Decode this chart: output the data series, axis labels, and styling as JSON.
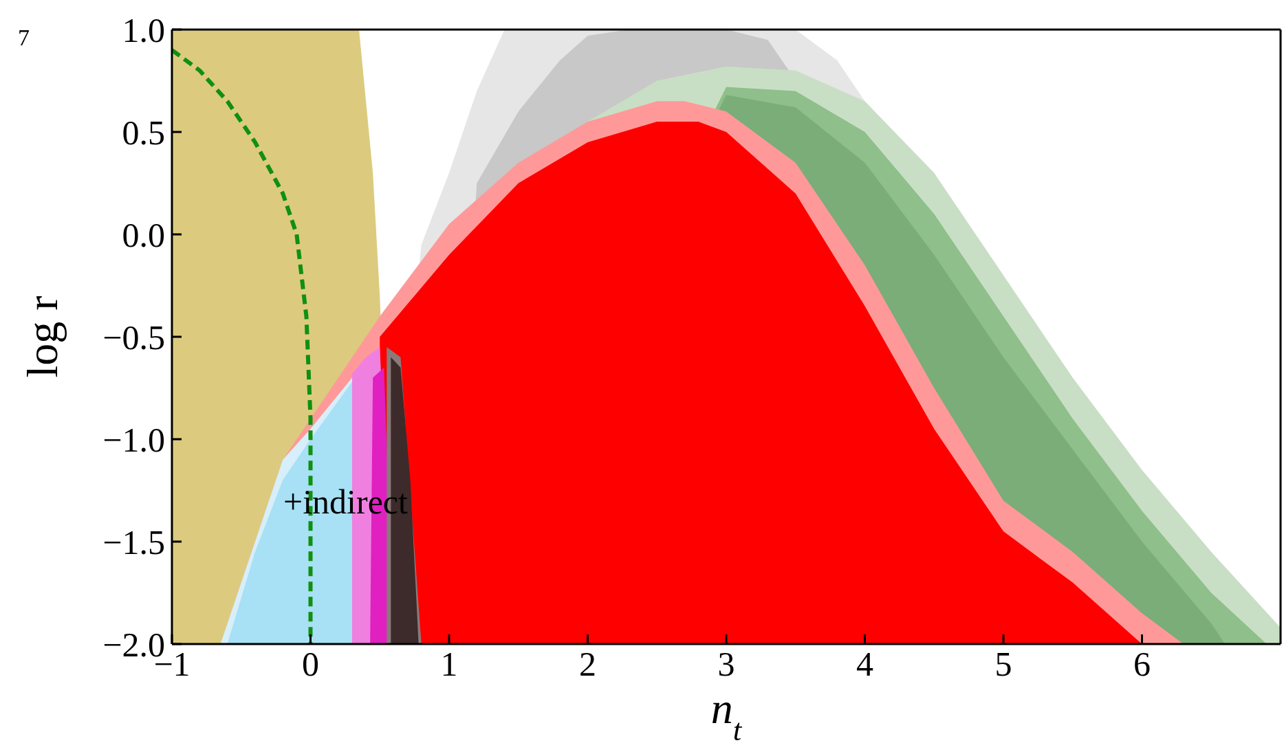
{
  "chart_data": {
    "type": "area",
    "xlabel": "n$_{t}$",
    "ylabel": "log r",
    "xlim": [
      -1,
      7
    ],
    "ylim": [
      -2,
      1
    ],
    "xticks": [
      {
        "value": -1,
        "label": "−1"
      },
      0,
      1,
      2,
      3,
      4,
      5,
      6
    ],
    "yticks": [
      {
        "value": -2,
        "label": "−2.0"
      },
      {
        "value": -1.5,
        "label": "−1.5"
      },
      {
        "value": -1,
        "label": "−1.0"
      },
      {
        "value": -0.5,
        "label": "−0.5"
      },
      {
        "value": 0,
        "label": "0.0"
      },
      {
        "value": 0.5,
        "label": "0.5"
      },
      {
        "value": 1,
        "label": "1.0"
      }
    ],
    "annotations": [
      "7",
      "+indirect"
    ],
    "series": [
      {
        "color": "#dccb7e",
        "x": [
          -1,
          -1,
          0.35,
          0.45,
          0.5,
          0.55,
          0.6
        ],
        "values": [
          -2,
          1,
          1,
          0.3,
          -0.3,
          null,
          -2
        ]
      },
      {
        "color": "#e6e6e6",
        "x": [
          0.5,
          0.8,
          1.0,
          1.2,
          1.4,
          2.0,
          3.0,
          3.5,
          3.8,
          4.0,
          4.5,
          5.0,
          5.5,
          6.0,
          6.5,
          6.8
        ],
        "values": [
          -2,
          -0.05,
          0.3,
          0.7,
          1.0,
          1.0,
          1.0,
          1.0,
          0.85,
          0.65,
          null,
          null,
          null,
          null,
          null,
          -2
        ]
      },
      {
        "color": "#c8c8c8",
        "x": [
          1.0,
          1.2,
          1.5,
          1.8,
          2.0,
          2.3,
          3.0,
          3.3,
          3.6,
          4.0,
          4.5,
          5.0,
          5.5,
          6.0,
          6.3
        ],
        "values": [
          -2,
          0.25,
          0.6,
          0.85,
          0.97,
          1.0,
          1.0,
          0.95,
          null,
          null,
          null,
          null,
          null,
          null,
          -2
        ]
      },
      {
        "color": "#c9dfc5",
        "x": [
          0.5,
          1.0,
          1.5,
          2.0,
          2.5,
          3.0,
          3.5,
          4.0,
          4.5,
          5.0,
          5.5,
          6.0,
          6.5,
          7.0,
          7.0
        ],
        "values": [
          -2,
          null,
          null,
          0.55,
          0.75,
          0.82,
          0.8,
          0.65,
          0.3,
          -0.2,
          -0.7,
          -1.15,
          -1.55,
          -1.92,
          -2
        ]
      },
      {
        "color": "#8fbf8a",
        "x": [
          1.0,
          2.0,
          3.0,
          3.5,
          4.0,
          4.5,
          5.0,
          5.5,
          6.0,
          6.5,
          6.9
        ],
        "values": [
          -2,
          null,
          0.72,
          0.7,
          0.5,
          0.1,
          -0.4,
          -0.9,
          -1.35,
          -1.75,
          -2
        ]
      },
      {
        "color": "#7aad78",
        "x": [
          1.0,
          2.0,
          3.0,
          3.5,
          4.0,
          4.5,
          5.0,
          5.5,
          6.0,
          6.5,
          6.6
        ],
        "values": [
          -2,
          null,
          0.68,
          0.62,
          0.35,
          -0.1,
          -0.6,
          -1.05,
          -1.5,
          -1.9,
          -2
        ]
      },
      {
        "color": "#ff9999",
        "x": [
          -0.65,
          -0.45,
          -0.2,
          0,
          0.3,
          0.5,
          1.0,
          1.5,
          2.0,
          2.5,
          2.7,
          3.0,
          3.5,
          4.0,
          4.5,
          5.0,
          5.5,
          6.0,
          6.3
        ],
        "values": [
          -2,
          -1.6,
          -1.1,
          -0.9,
          -0.6,
          -0.4,
          0.05,
          0.35,
          0.55,
          0.65,
          0.65,
          0.6,
          0.35,
          -0.15,
          -0.75,
          -1.3,
          -1.55,
          -1.85,
          -2
        ]
      },
      {
        "color": "#ff0000",
        "x": [
          0.5,
          0.5,
          1.0,
          1.5,
          2.0,
          2.5,
          2.8,
          3.0,
          3.5,
          4.0,
          4.5,
          5.0,
          5.5,
          6.0
        ],
        "values": [
          -2,
          -0.5,
          -0.1,
          0.25,
          0.45,
          0.55,
          0.55,
          0.5,
          0.2,
          -0.35,
          -0.95,
          -1.45,
          -1.7,
          -2
        ]
      },
      {
        "color": "#d6effa",
        "x": [
          -0.65,
          -0.4,
          -0.2,
          0,
          0.3,
          0.45,
          0.5
        ],
        "values": [
          -2,
          -1.5,
          -1.1,
          -0.95,
          -0.7,
          null,
          -2
        ]
      },
      {
        "color": "#a8e0f5",
        "x": [
          -0.6,
          -0.4,
          -0.2,
          0,
          0.3,
          0.42,
          0.45
        ],
        "values": [
          -2,
          -1.55,
          -1.2,
          -1.0,
          -0.72,
          null,
          -2
        ]
      },
      {
        "color": "#f080e0",
        "x": [
          0.3,
          0.3,
          0.4,
          0.5,
          0.6
        ],
        "values": [
          -2,
          -0.68,
          -0.6,
          -0.55,
          -2
        ]
      },
      {
        "color": "#e020c0",
        "x": [
          0.43,
          0.45,
          0.53,
          0.6
        ],
        "values": [
          -2,
          -0.7,
          -0.65,
          -2
        ]
      },
      {
        "color": "#8a7a7a",
        "x": [
          0.55,
          0.55,
          0.65,
          0.8
        ],
        "values": [
          -2,
          -0.55,
          -0.6,
          -2
        ]
      },
      {
        "color": "#3d2a2a",
        "x": [
          0.58,
          0.58,
          0.65,
          0.72,
          0.78
        ],
        "values": [
          -2,
          -0.6,
          -0.65,
          -1.2,
          -2
        ]
      },
      {
        "type": "line",
        "color": "#109010",
        "line_style": "dashed",
        "x": [
          -1,
          -0.8,
          -0.6,
          -0.4,
          -0.2,
          -0.1,
          -0.03,
          0,
          0
        ],
        "values": [
          0.9,
          0.8,
          0.65,
          0.45,
          0.2,
          0,
          -0.4,
          -0.9,
          -2
        ]
      }
    ]
  }
}
